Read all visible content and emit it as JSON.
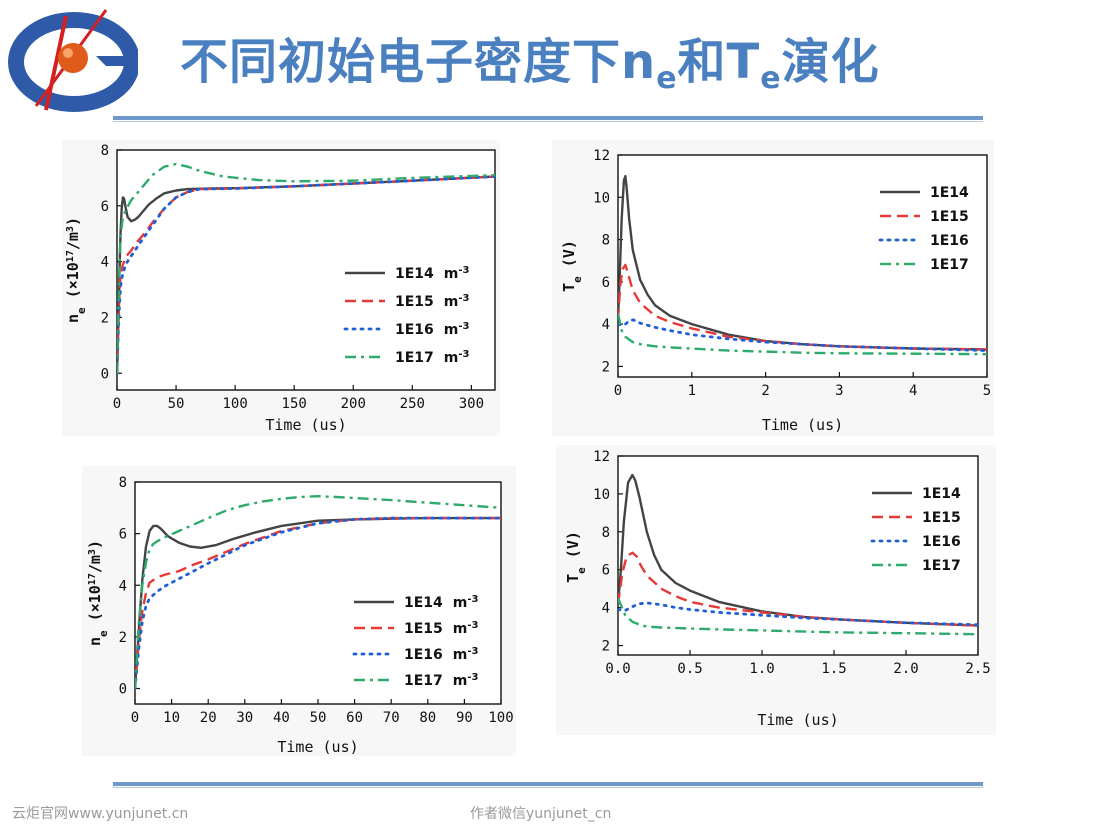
{
  "header": {
    "title_prefix": "不同初始电子密度下n",
    "title_sub1": "e",
    "title_mid": "和T",
    "title_sub2": "e",
    "title_suffix": "演化",
    "logo_icon": "institute-logo-icon"
  },
  "footer": {
    "left": "云炬官网www.yunjunet.cn",
    "right": "作者微信yunjunet_cn"
  },
  "colors": {
    "title": "#4a7fc0",
    "rule": "#6f98cc",
    "series": [
      "#444444",
      "#e53935",
      "#1e5fd8",
      "#2eaa6a"
    ]
  },
  "chart_data": [
    {
      "id": "ne_long",
      "type": "line",
      "xlabel": "Time   (us)",
      "ylabel_main": "n",
      "ylabel_sub": "e",
      "ylabel_rest": " (×10",
      "ylabel_sup": "17",
      "ylabel_end": "/m",
      "ylabel_sup2": "3",
      "ylabel_close": ")",
      "xlim": [
        0,
        320
      ],
      "ylim": [
        -0.6,
        8
      ],
      "xticks": [
        0,
        50,
        100,
        150,
        200,
        250,
        300
      ],
      "yticks": [
        0,
        2,
        4,
        6,
        8
      ],
      "legend_unit": "m",
      "legend_unit_sup": "-3",
      "series": [
        {
          "name": "1E14",
          "x": [
            0,
            1,
            2,
            3,
            4,
            5,
            6,
            7,
            9,
            12,
            15,
            18,
            22,
            27,
            33,
            40,
            50,
            60,
            80,
            100,
            150,
            200,
            250,
            320
          ],
          "y": [
            0,
            1.5,
            3.5,
            5.0,
            5.9,
            6.3,
            6.25,
            6.0,
            5.6,
            5.45,
            5.5,
            5.6,
            5.8,
            6.05,
            6.25,
            6.45,
            6.55,
            6.6,
            6.62,
            6.63,
            6.7,
            6.8,
            6.9,
            7.05
          ]
        },
        {
          "name": "1E15",
          "x": [
            0,
            1,
            2,
            3,
            5,
            8,
            12,
            16,
            20,
            25,
            30,
            40,
            50,
            60,
            70,
            100,
            150,
            200,
            250,
            320
          ],
          "y": [
            0,
            1.6,
            2.8,
            3.5,
            3.9,
            4.2,
            4.4,
            4.65,
            4.85,
            5.1,
            5.4,
            5.9,
            6.3,
            6.5,
            6.6,
            6.62,
            6.7,
            6.8,
            6.9,
            7.05
          ]
        },
        {
          "name": "1E16",
          "x": [
            0,
            1,
            2,
            3,
            5,
            8,
            12,
            16,
            20,
            25,
            30,
            40,
            50,
            60,
            70,
            100,
            150,
            200,
            250,
            320
          ],
          "y": [
            0,
            1.4,
            2.4,
            3.1,
            3.6,
            3.95,
            4.2,
            4.45,
            4.7,
            5.0,
            5.3,
            5.9,
            6.3,
            6.5,
            6.6,
            6.62,
            6.7,
            6.8,
            6.9,
            7.05
          ]
        },
        {
          "name": "1E17",
          "x": [
            0,
            1,
            2,
            3,
            5,
            8,
            12,
            20,
            30,
            40,
            50,
            60,
            70,
            90,
            120,
            150,
            200,
            250,
            320
          ],
          "y": [
            0,
            2.2,
            3.8,
            4.9,
            5.6,
            5.9,
            6.2,
            6.6,
            7.1,
            7.4,
            7.5,
            7.4,
            7.25,
            7.05,
            6.92,
            6.88,
            6.9,
            7.0,
            7.1
          ]
        }
      ]
    },
    {
      "id": "te_long",
      "type": "line",
      "xlabel": "Time   (us)",
      "ylabel_main": "T",
      "ylabel_sub": "e",
      "ylabel_rest": " (V)",
      "xlim": [
        0,
        5
      ],
      "ylim": [
        1.5,
        12
      ],
      "xticks": [
        0,
        1,
        2,
        3,
        4,
        5
      ],
      "yticks": [
        2,
        4,
        6,
        8,
        10,
        12
      ],
      "series": [
        {
          "name": "1E14",
          "x": [
            0,
            0.02,
            0.05,
            0.08,
            0.1,
            0.12,
            0.15,
            0.2,
            0.3,
            0.4,
            0.5,
            0.7,
            1.0,
            1.5,
            2.0,
            2.5,
            3.0,
            4.0,
            5.0
          ],
          "y": [
            4.2,
            6.0,
            9.0,
            10.8,
            11.0,
            10.3,
            9.0,
            7.5,
            6.1,
            5.4,
            4.9,
            4.4,
            4.0,
            3.5,
            3.2,
            3.05,
            2.95,
            2.85,
            2.8
          ]
        },
        {
          "name": "1E15",
          "x": [
            0,
            0.03,
            0.06,
            0.1,
            0.15,
            0.2,
            0.3,
            0.5,
            0.7,
            1.0,
            1.5,
            2.0,
            2.5,
            3.0,
            4.0,
            5.0
          ],
          "y": [
            4.2,
            5.8,
            6.6,
            6.8,
            6.2,
            5.6,
            5.0,
            4.4,
            4.1,
            3.8,
            3.4,
            3.2,
            3.05,
            2.95,
            2.85,
            2.8
          ]
        },
        {
          "name": "1E16",
          "x": [
            0,
            0.05,
            0.1,
            0.15,
            0.2,
            0.25,
            0.3,
            0.5,
            0.7,
            1.0,
            1.5,
            2.0,
            2.5,
            3.0,
            4.0,
            5.0
          ],
          "y": [
            4.0,
            3.95,
            4.0,
            4.15,
            4.2,
            4.15,
            4.05,
            3.85,
            3.7,
            3.5,
            3.3,
            3.15,
            3.05,
            2.95,
            2.85,
            2.75
          ]
        },
        {
          "name": "1E17",
          "x": [
            0,
            0.05,
            0.1,
            0.2,
            0.3,
            0.5,
            0.7,
            1.0,
            1.5,
            2.0,
            2.5,
            3.0,
            4.0,
            5.0
          ],
          "y": [
            4.5,
            3.7,
            3.4,
            3.15,
            3.05,
            2.95,
            2.9,
            2.85,
            2.75,
            2.7,
            2.65,
            2.62,
            2.6,
            2.58
          ]
        }
      ]
    },
    {
      "id": "ne_short",
      "type": "line",
      "xlabel": "Time   (us)",
      "ylabel_main": "n",
      "ylabel_sub": "e",
      "ylabel_rest": " (×10",
      "ylabel_sup": "17",
      "ylabel_end": "/m",
      "ylabel_sup2": "3",
      "ylabel_close": ")",
      "xlim": [
        0,
        100
      ],
      "ylim": [
        -0.6,
        8
      ],
      "xticks": [
        0,
        10,
        20,
        30,
        40,
        50,
        60,
        70,
        80,
        90,
        100
      ],
      "yticks": [
        0,
        2,
        4,
        6,
        8
      ],
      "legend_unit": "m",
      "legend_unit_sup": "-3",
      "series": [
        {
          "name": "1E14",
          "x": [
            0,
            1,
            2,
            3,
            4,
            5,
            6,
            7,
            9,
            12,
            15,
            18,
            22,
            27,
            33,
            40,
            50,
            60,
            70,
            80,
            90,
            100
          ],
          "y": [
            0,
            2.2,
            4.2,
            5.5,
            6.1,
            6.3,
            6.3,
            6.2,
            5.9,
            5.65,
            5.5,
            5.45,
            5.55,
            5.8,
            6.05,
            6.3,
            6.5,
            6.55,
            6.58,
            6.6,
            6.6,
            6.6
          ]
        },
        {
          "name": "1E15",
          "x": [
            0,
            1,
            2,
            3,
            4,
            6,
            8,
            12,
            16,
            20,
            25,
            30,
            40,
            50,
            60,
            70,
            80,
            90,
            100
          ],
          "y": [
            0,
            1.8,
            3.0,
            3.7,
            4.1,
            4.3,
            4.4,
            4.55,
            4.8,
            5.0,
            5.3,
            5.6,
            6.1,
            6.4,
            6.55,
            6.6,
            6.6,
            6.6,
            6.6
          ]
        },
        {
          "name": "1E16",
          "x": [
            0,
            1,
            2,
            3,
            4,
            6,
            8,
            12,
            16,
            20,
            25,
            30,
            40,
            50,
            60,
            70,
            80,
            90,
            100
          ],
          "y": [
            0,
            1.5,
            2.6,
            3.2,
            3.5,
            3.75,
            3.95,
            4.25,
            4.55,
            4.85,
            5.2,
            5.55,
            6.05,
            6.4,
            6.55,
            6.6,
            6.6,
            6.6,
            6.6
          ]
        },
        {
          "name": "1E17",
          "x": [
            0,
            1,
            2,
            3,
            4,
            5,
            6,
            8,
            12,
            16,
            20,
            25,
            30,
            35,
            40,
            45,
            50,
            55,
            60,
            70,
            80,
            90,
            100
          ],
          "y": [
            0,
            2.5,
            4.0,
            4.9,
            5.4,
            5.6,
            5.7,
            5.85,
            6.1,
            6.35,
            6.6,
            6.9,
            7.1,
            7.25,
            7.35,
            7.42,
            7.45,
            7.42,
            7.38,
            7.3,
            7.2,
            7.1,
            7.0
          ]
        }
      ]
    },
    {
      "id": "te_short",
      "type": "line",
      "xlabel": "Time   (us)",
      "ylabel_main": "T",
      "ylabel_sub": "e",
      "ylabel_rest": " (V)",
      "xlim": [
        0,
        2.5
      ],
      "ylim": [
        1.5,
        12
      ],
      "xticks": [
        0.0,
        0.5,
        1.0,
        1.5,
        2.0,
        2.5
      ],
      "xtick_labels": [
        "0.0",
        "0.5",
        "1.0",
        "1.5",
        "2.0",
        "2.5"
      ],
      "yticks": [
        2,
        4,
        6,
        8,
        10,
        12
      ],
      "series": [
        {
          "name": "1E14",
          "x": [
            0,
            0.02,
            0.04,
            0.07,
            0.1,
            0.12,
            0.15,
            0.2,
            0.25,
            0.3,
            0.4,
            0.5,
            0.7,
            1.0,
            1.3,
            1.6,
            2.0,
            2.5
          ],
          "y": [
            4.2,
            6.0,
            8.5,
            10.6,
            11.0,
            10.7,
            9.8,
            8.0,
            6.8,
            6.0,
            5.3,
            4.9,
            4.3,
            3.8,
            3.5,
            3.35,
            3.2,
            3.05
          ]
        },
        {
          "name": "1E15",
          "x": [
            0,
            0.03,
            0.06,
            0.1,
            0.13,
            0.16,
            0.2,
            0.3,
            0.4,
            0.5,
            0.7,
            1.0,
            1.3,
            1.6,
            2.0,
            2.5
          ],
          "y": [
            4.2,
            5.8,
            6.7,
            6.9,
            6.7,
            6.2,
            5.7,
            5.0,
            4.6,
            4.3,
            4.0,
            3.75,
            3.5,
            3.35,
            3.2,
            3.05
          ]
        },
        {
          "name": "1E16",
          "x": [
            0,
            0.05,
            0.1,
            0.15,
            0.2,
            0.25,
            0.3,
            0.4,
            0.5,
            0.7,
            1.0,
            1.3,
            1.6,
            2.0,
            2.5
          ],
          "y": [
            3.9,
            3.85,
            4.05,
            4.2,
            4.25,
            4.2,
            4.15,
            4.0,
            3.9,
            3.75,
            3.6,
            3.45,
            3.35,
            3.2,
            3.1
          ]
        },
        {
          "name": "1E17",
          "x": [
            0,
            0.05,
            0.1,
            0.15,
            0.2,
            0.3,
            0.5,
            0.7,
            1.0,
            1.5,
            2.0,
            2.5
          ],
          "y": [
            4.5,
            3.6,
            3.25,
            3.1,
            3.0,
            2.95,
            2.9,
            2.85,
            2.8,
            2.7,
            2.65,
            2.6
          ]
        }
      ]
    }
  ]
}
